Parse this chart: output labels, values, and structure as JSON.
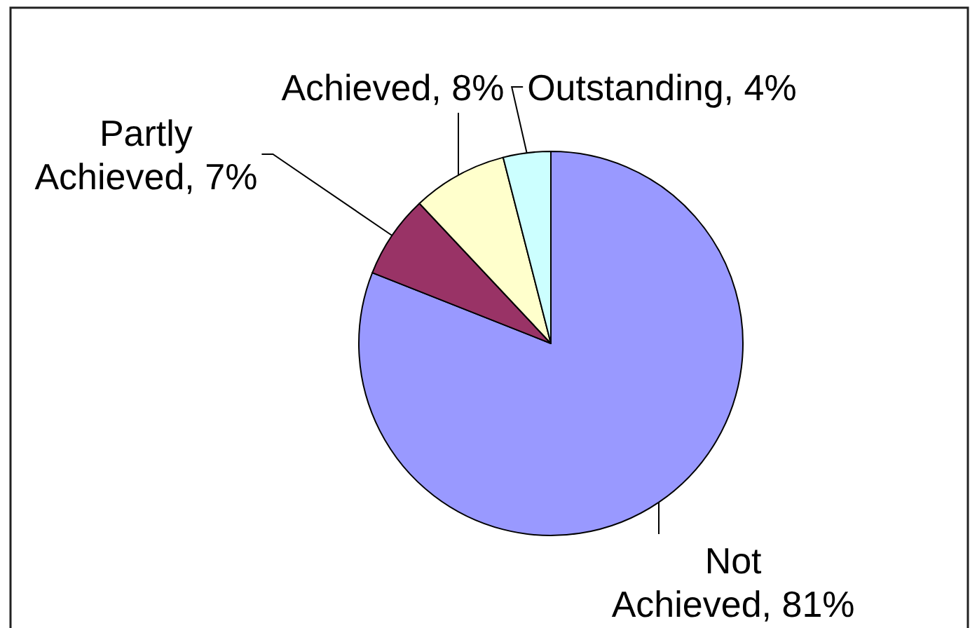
{
  "chart_data": {
    "type": "pie",
    "categories": [
      "Not Achieved",
      "Partly Achieved",
      "Achieved",
      "Outstanding"
    ],
    "values": [
      81,
      7,
      8,
      4
    ],
    "colors": [
      "#9999ff",
      "#993366",
      "#ffffcc",
      "#ccffff"
    ],
    "value_labels": [
      "81%",
      "7%",
      "8%",
      "4%"
    ]
  }
}
